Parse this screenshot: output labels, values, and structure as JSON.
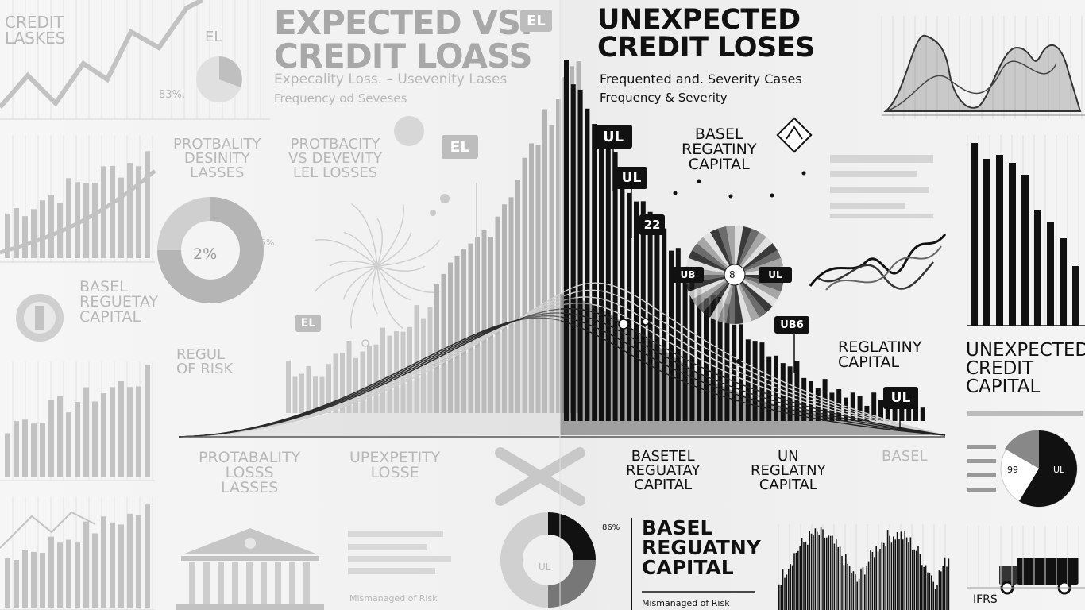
{
  "left": {
    "credit_losses": "CREDIT\nLASKES",
    "main_title": "EXPECTED VS.\nCREDIT LOASS",
    "el_tag_top": "EL",
    "el_label": "EL",
    "subtitle_1": "Expecality Loss. – Usevenity Lases",
    "subtitle_2": "Frequency od Seveses",
    "pct_83": "83%.",
    "prob_density": "PROTBALITY\nDESINITY\nLASSES",
    "prob_severity": "PROTBACITY\nVS DEVEVITY\nLEL LOSSES",
    "el_tag_mid": "EL",
    "pie_label": "2%",
    "pie_pct": "5%.",
    "basel": "BASEL\nREGUETAY\nCAPITAL",
    "el_tag_low": "EL",
    "regul": "REGUL\nOF RISK",
    "prob_loss": "PROTABALITY\nLOSSS\nLASSES",
    "unexp_loss": "UPEXPETITY\nLOSSE",
    "ul_tag": "UL",
    "bottom_caption": "Mismanaged of Risk"
  },
  "right": {
    "main_title": "UNEXPECTED\nCREDIT LOSES",
    "subtitle_1": "Frequented and. Severity Cases",
    "subtitle_2": "Frequency & Severity",
    "ul_tag_1": "UL",
    "ul_tag_2": "UL",
    "ul_tag_3": "22",
    "basel_1": "BASEL\nREGATINY\nCAPITAL",
    "ul_left": "UB",
    "ul_right": "UL",
    "ul_center": "8",
    "ub_tag": "UB6",
    "regulatory": "REGLATINY\nCAPITAL",
    "ul_tag_4": "UL",
    "unexpected_capital": "UNEXPECTED\nCREDIT\nCAPITAL",
    "basetel": "BASETEL\nREGUATAY\nCAPITAL",
    "un_reg": "UN\nREGLATNY\nCAPITAL",
    "basel_faded": "BASEL",
    "pie2_left": "99",
    "pie2_right": "UL",
    "basel_big": "BASEL\nREGUATNY\nCAPITAL",
    "pct_bottom": "86%",
    "ifrs": "IFRS",
    "bottom_caption": "Mismanaged of Risk"
  },
  "colors": {
    "left_ink": "#b8b8b8",
    "right_ink": "#111111",
    "background": "#f2f2f2"
  },
  "icons": [
    "bank-building-icon",
    "seal-emblem-icon",
    "cross-icon",
    "diamond-badge-icon",
    "truck-icon"
  ]
}
